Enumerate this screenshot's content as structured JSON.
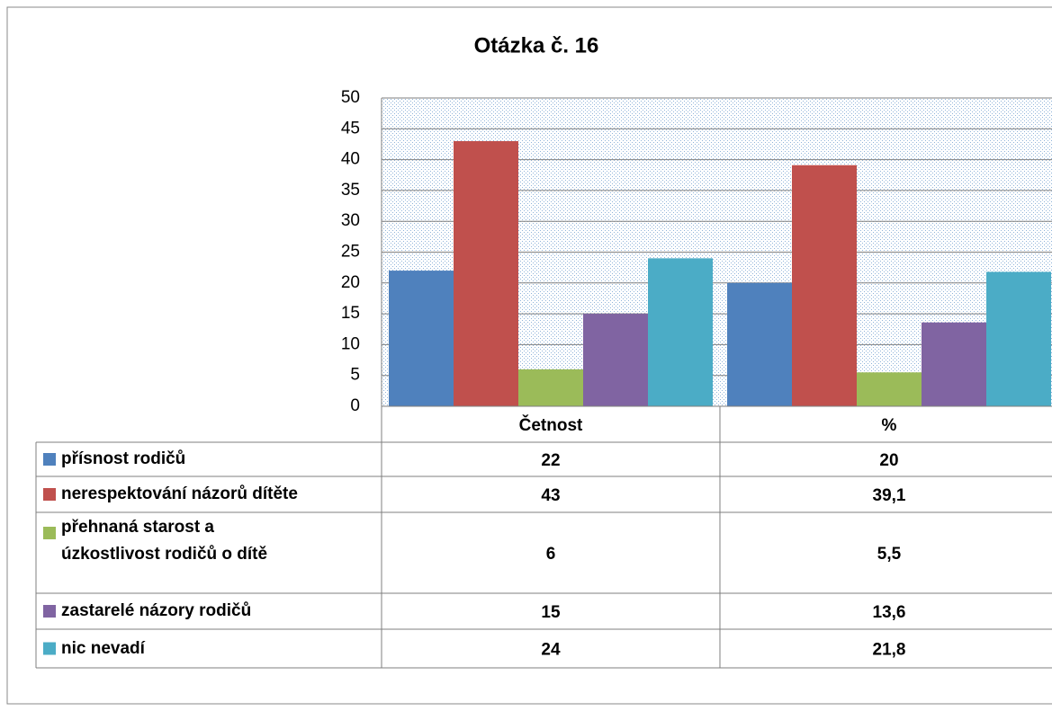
{
  "chart_data": {
    "type": "bar",
    "title": "Otázka č. 16",
    "categories": [
      "Četnost",
      "%"
    ],
    "series": [
      {
        "name": "přísnost rodičů",
        "color": "#4f81bd",
        "values": [
          22,
          20
        ],
        "value_labels": [
          "22",
          "20"
        ]
      },
      {
        "name": "nerespektování názorů dítěte",
        "color": "#c0504d",
        "values": [
          43,
          39.1
        ],
        "value_labels": [
          "43",
          "39,1"
        ]
      },
      {
        "name": "přehnaná starost a úzkostlivost rodičů o dítě",
        "color": "#9bbb59",
        "values": [
          6,
          5.5
        ],
        "value_labels": [
          "6",
          "5,5"
        ]
      },
      {
        "name": "zastarelé názory rodičů",
        "color": "#8064a2",
        "values": [
          15,
          13.6
        ],
        "value_labels": [
          "15",
          "13,6"
        ]
      },
      {
        "name": "nic nevadí",
        "color": "#4bacc6",
        "values": [
          24,
          21.8
        ],
        "value_labels": [
          "24",
          "21,8"
        ]
      }
    ],
    "ylim": [
      0,
      50
    ],
    "yticks": [
      0,
      5,
      10,
      15,
      20,
      25,
      30,
      35,
      40,
      45,
      50
    ],
    "grid": true,
    "data_table": true
  }
}
